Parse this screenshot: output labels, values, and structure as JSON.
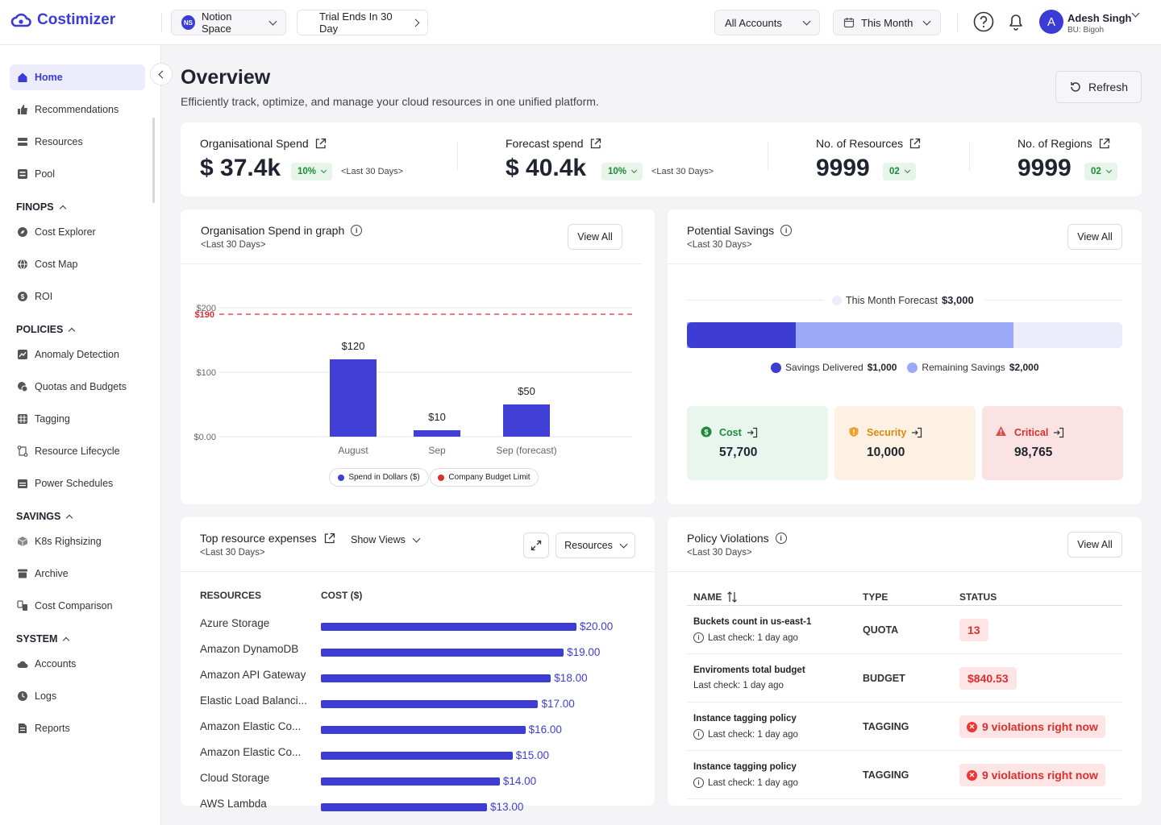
{
  "app": {
    "name": "Costimizer"
  },
  "topbar": {
    "workspace": {
      "initials": "NS",
      "label": "Notion Space"
    },
    "trial": "Trial Ends In 30 Day",
    "accounts": "All Accounts",
    "period": "This Month",
    "user": {
      "initial": "A",
      "name": "Adesh Singh",
      "bu": "BU: Bigoh"
    }
  },
  "sidebar": {
    "home": "Home",
    "recommendations": "Recommendations",
    "resources": "Resources",
    "pool": "Pool",
    "finops": {
      "title": "FINOPS",
      "cost_explorer": "Cost Explorer",
      "cost_map": "Cost Map",
      "roi": "ROI"
    },
    "policies": {
      "title": "POLICIES",
      "anomaly": "Anomaly Detection",
      "quotas": "Quotas and Budgets",
      "tagging": "Tagging",
      "lifecycle": "Resource Lifecycle",
      "power": "Power Schedules"
    },
    "savings": {
      "title": "SAVINGS",
      "k8s": "K8s Righsizing",
      "archive": "Archive",
      "comparison": "Cost Comparison"
    },
    "system": {
      "title": "SYSTEM",
      "accounts": "Accounts",
      "logs": "Logs",
      "reports": "Reports"
    }
  },
  "page": {
    "title": "Overview",
    "subtitle": "Efficiently track, optimize, and manage your cloud resources in one unified platform.",
    "refresh": "Refresh"
  },
  "stats": {
    "org_spend": {
      "label": "Organisational Spend",
      "value": "$ 37.4k",
      "badge": "10%",
      "period": "<Last 30 Days>"
    },
    "forecast": {
      "label": "Forecast spend",
      "value": "$ 40.4k",
      "badge": "10%",
      "period": "<Last 30 Days>"
    },
    "resources": {
      "label": "No. of Resources",
      "value": "9999",
      "badge": "02"
    },
    "regions": {
      "label": "No. of Regions",
      "value": "9999",
      "badge": "02"
    }
  },
  "spend_graph": {
    "title": "Organisation Spend in graph",
    "subtitle": "<Last 30 Days>",
    "view_all": "View All",
    "budget_label": "$190",
    "legend": {
      "spend": "Spend in Dollars ($)",
      "budget": "Company Budget Limit"
    },
    "colors": {
      "bar": "#4040d6",
      "budget": "#d93030"
    }
  },
  "chart_data": {
    "type": "bar",
    "categories": [
      "August",
      "Sep",
      "Sep (forecast)"
    ],
    "series": [
      {
        "name": "Spend in Dollars ($)",
        "values": [
          120,
          10,
          50
        ]
      }
    ],
    "value_labels": [
      "$120",
      "$10",
      "$50"
    ],
    "reference_line": {
      "name": "Company Budget Limit",
      "value": 190
    },
    "yticks": [
      0,
      100,
      200
    ],
    "ytick_labels": [
      "$0.00",
      "$100",
      "$200"
    ],
    "ylim": [
      0,
      200
    ],
    "grid": true,
    "legend": "bottom"
  },
  "savings": {
    "title": "Potential Savings",
    "subtitle": "<Last 30 Days>",
    "view_all": "View All",
    "forecast_label": "This Month Forecast",
    "forecast_value": "$3,000",
    "delivered_label": "Savings Delivered",
    "delivered_value": "$1,000",
    "remaining_label": "Remaining Savings",
    "remaining_value": "$2,000",
    "forecast_total": 3000,
    "delivered_amount": 1000,
    "remaining_amount": 2000,
    "cost": {
      "label": "Cost",
      "value": "57,700"
    },
    "security": {
      "label": "Security",
      "value": "10,000"
    },
    "critical": {
      "label": "Critical",
      "value": "98,765"
    }
  },
  "top_resources": {
    "title": "Top resource expenses",
    "show_views": "Show Views",
    "subtitle": "<Last 30 Days>",
    "dropdown": "Resources",
    "col_resources": "RESOURCES",
    "col_cost": "COST ($)",
    "rows": [
      {
        "name": "Azure Storage",
        "cost": "$20.00",
        "amount": 20
      },
      {
        "name": "Amazon DynamoDB",
        "cost": "$19.00",
        "amount": 19
      },
      {
        "name": "Amazon API Gateway",
        "cost": "$18.00",
        "amount": 18
      },
      {
        "name": "Elastic Load Balanci...",
        "cost": "$17.00",
        "amount": 17
      },
      {
        "name": "Amazon Elastic Co...",
        "cost": "$16.00",
        "amount": 16
      },
      {
        "name": "Amazon Elastic Co...",
        "cost": "$15.00",
        "amount": 15
      },
      {
        "name": "Cloud Storage",
        "cost": "$14.00",
        "amount": 14
      },
      {
        "name": "AWS Lambda",
        "cost": "$13.00",
        "amount": 13
      }
    ]
  },
  "violations": {
    "title": "Policy Violations",
    "subtitle": "<Last 30 Days>",
    "view_all": "View All",
    "col_name": "NAME",
    "col_type": "TYPE",
    "col_status": "STATUS",
    "last_check_label": "Last check:",
    "rows": [
      {
        "name": "Buckets count in us-east-1",
        "last": "1 day ago",
        "type": "QUOTA",
        "status": "13"
      },
      {
        "name": "Enviroments total budget",
        "last": "1 day ago",
        "type": "BUDGET",
        "status": "$840.53"
      },
      {
        "name": "Instance tagging policy",
        "last": "1 day ago",
        "type": "TAGGING",
        "status": "9 violations right now"
      },
      {
        "name": "Instance tagging policy",
        "last": "1 day ago",
        "type": "TAGGING",
        "status": "9 violations right now"
      }
    ]
  }
}
